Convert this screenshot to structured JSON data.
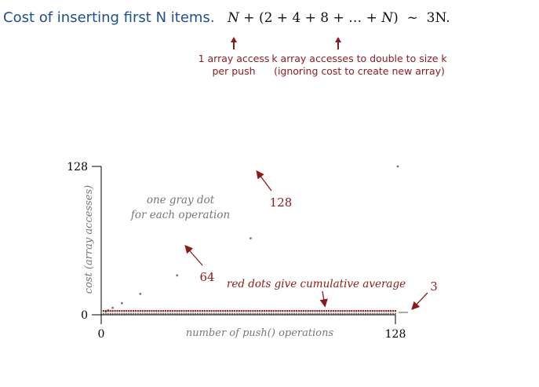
{
  "header": {
    "title": "Cost of inserting first N items.",
    "formula": {
      "n": "N",
      "plus": "+",
      "sum_open": "(2 + 4 + 8 + … + ",
      "sum_n": "N",
      "sum_close": ")",
      "tilde": "~",
      "result": "3N."
    }
  },
  "notes": {
    "left": {
      "line1": "1 array access",
      "line2": "per push"
    },
    "right": {
      "line1": "k array accesses to double to size k",
      "line2": "(ignoring cost to create new array)"
    }
  },
  "annotations": {
    "gray_line1": "one gray dot",
    "gray_line2": "for each operation",
    "red_dots": "red dots give cumulative average",
    "label_128": "128",
    "label_64": "64",
    "label_3": "3"
  },
  "colors": {
    "title": "#1f4e8c",
    "accent_red": "#8b1a1a",
    "gray_dot": "#777777",
    "axis": "#000000"
  },
  "chart_data": {
    "type": "scatter",
    "title": "",
    "xlabel": "number of push() operations",
    "ylabel": "cost (array accesses)",
    "xlim": [
      0,
      128
    ],
    "ylim": [
      0,
      128
    ],
    "x_ticks": [
      "0",
      "128"
    ],
    "y_ticks": [
      "0",
      "128"
    ],
    "series": [
      {
        "name": "one gray dot for each operation",
        "color": "#777777",
        "points": [
          [
            2,
            3
          ],
          [
            3,
            4
          ],
          [
            5,
            6
          ],
          [
            9,
            10
          ],
          [
            17,
            18
          ],
          [
            33,
            34
          ],
          [
            65,
            66
          ],
          [
            129,
            130
          ]
        ],
        "baseline_value": 1
      },
      {
        "name": "red dots give cumulative average",
        "color": "#8b1a1a",
        "approx_constant": 3,
        "n": 128
      }
    ]
  }
}
